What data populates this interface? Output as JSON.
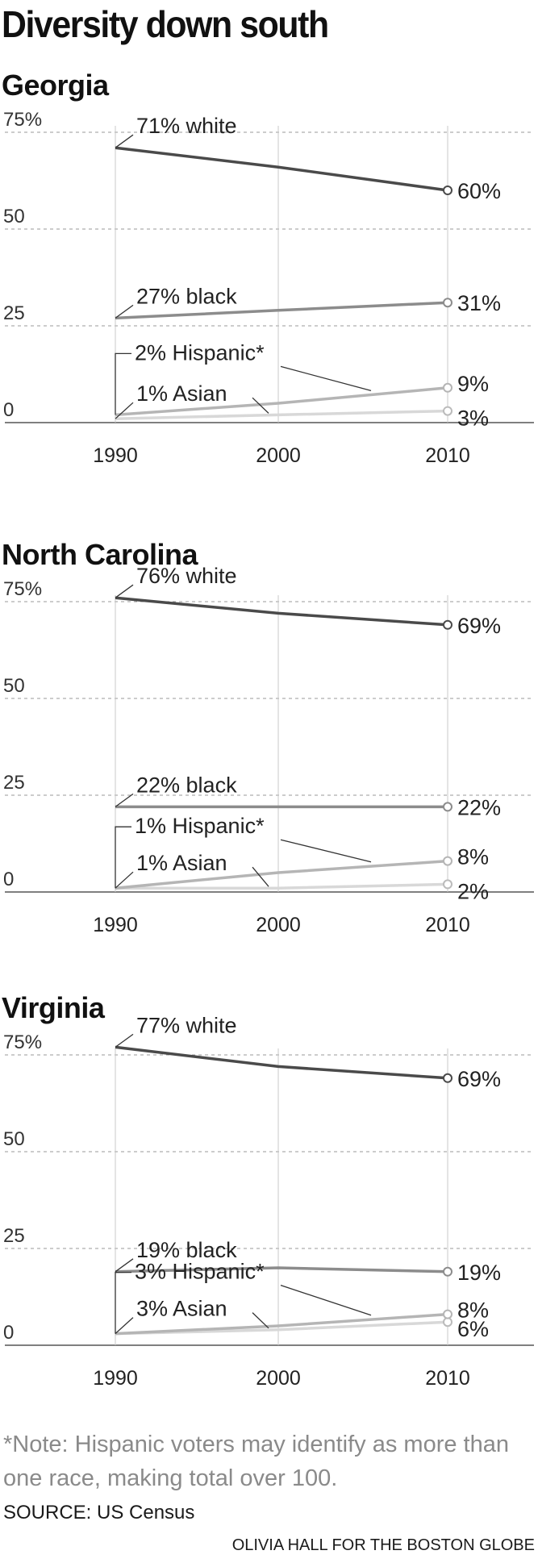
{
  "title": "Diversity down south",
  "y_ticks": [
    "75%",
    "50",
    "25",
    "0"
  ],
  "x_ticks": [
    "1990",
    "2000",
    "2010"
  ],
  "chart_data": [
    {
      "type": "line",
      "title": "Georgia",
      "x": [
        1990,
        2000,
        2010
      ],
      "ylim": [
        0,
        75
      ],
      "series": [
        {
          "name": "white",
          "values": [
            71,
            66,
            60
          ],
          "start_label": "71% white",
          "end_label": "60%",
          "color": "#4a4a4a"
        },
        {
          "name": "black",
          "values": [
            27,
            29,
            31
          ],
          "start_label": "27% black",
          "end_label": "31%",
          "color": "#8c8c8c"
        },
        {
          "name": "Hispanic",
          "values": [
            2,
            5,
            9
          ],
          "start_label": "2% Hispanic*",
          "end_label": "9%",
          "color": "#b5b5b5"
        },
        {
          "name": "Asian",
          "values": [
            1,
            2,
            3
          ],
          "start_label": "1% Asian",
          "end_label": "3%",
          "color": "#d8d8d8"
        }
      ]
    },
    {
      "type": "line",
      "title": "North Carolina",
      "x": [
        1990,
        2000,
        2010
      ],
      "ylim": [
        0,
        75
      ],
      "series": [
        {
          "name": "white",
          "values": [
            76,
            72,
            69
          ],
          "start_label": "76% white",
          "end_label": "69%",
          "color": "#4a4a4a"
        },
        {
          "name": "black",
          "values": [
            22,
            22,
            22
          ],
          "start_label": "22% black",
          "end_label": "22%",
          "color": "#8c8c8c"
        },
        {
          "name": "Hispanic",
          "values": [
            1,
            5,
            8
          ],
          "start_label": "1% Hispanic*",
          "end_label": "8%",
          "color": "#b5b5b5"
        },
        {
          "name": "Asian",
          "values": [
            1,
            1,
            2
          ],
          "start_label": "1% Asian",
          "end_label": "2%",
          "color": "#d8d8d8"
        }
      ]
    },
    {
      "type": "line",
      "title": "Virginia",
      "x": [
        1990,
        2000,
        2010
      ],
      "ylim": [
        0,
        75
      ],
      "series": [
        {
          "name": "white",
          "values": [
            77,
            72,
            69
          ],
          "start_label": "77% white",
          "end_label": "69%",
          "color": "#4a4a4a"
        },
        {
          "name": "black",
          "values": [
            19,
            20,
            19
          ],
          "start_label": "19% black",
          "end_label": "19%",
          "color": "#8c8c8c"
        },
        {
          "name": "Hispanic",
          "values": [
            3,
            5,
            8
          ],
          "start_label": "3% Hispanic*",
          "end_label": "8%",
          "color": "#b5b5b5"
        },
        {
          "name": "Asian",
          "values": [
            3,
            4,
            6
          ],
          "start_label": "3% Asian",
          "end_label": "6%",
          "color": "#d8d8d8"
        }
      ]
    }
  ],
  "note": "*Note:  Hispanic voters may identify as more than one race, making total over 100.",
  "source": "SOURCE: US Census",
  "credit": "OLIVIA HALL FOR THE BOSTON GLOBE"
}
